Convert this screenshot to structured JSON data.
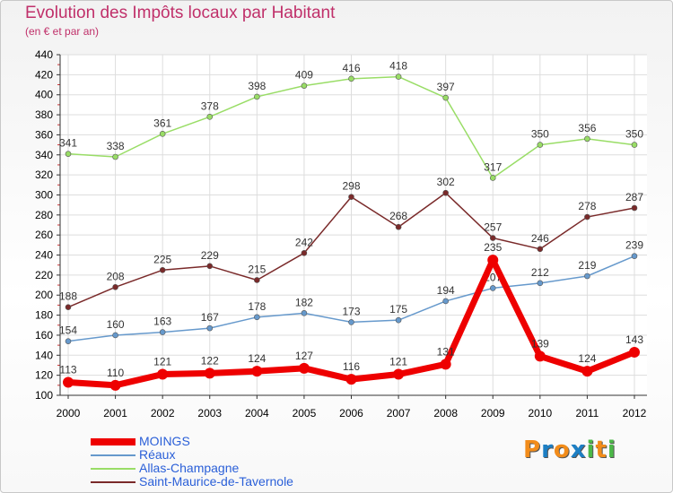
{
  "header": {
    "title": "Evolution des Impôts locaux par Habitant",
    "subtitle": "(en € et par an)"
  },
  "brand": {
    "text": "Proxiti",
    "letters": [
      "P",
      "r",
      "o",
      "x",
      "i",
      "t",
      "i"
    ],
    "colors": [
      "#f28c1a",
      "#1d7fc4",
      "#f28c1a",
      "#1d7fc4",
      "#4cb848",
      "#f28c1a",
      "#4cb848"
    ]
  },
  "chart_data": {
    "type": "line",
    "x": [
      2000,
      2001,
      2002,
      2003,
      2004,
      2005,
      2006,
      2007,
      2008,
      2009,
      2010,
      2011,
      2012
    ],
    "ylim": [
      100,
      440
    ],
    "yticks": [
      100,
      120,
      140,
      160,
      180,
      200,
      220,
      240,
      260,
      280,
      300,
      320,
      340,
      360,
      380,
      400,
      420,
      440
    ],
    "grid": true,
    "legend_position": "bottom-left",
    "series": [
      {
        "name": "Allas-Champagne",
        "color": "#99dd66",
        "labels": [
          "341",
          "338",
          "361",
          "378",
          "398",
          "409",
          "416",
          "418",
          "397",
          "317",
          "350",
          "356",
          "350"
        ],
        "values": [
          341,
          338,
          361,
          378,
          398,
          409,
          416,
          418,
          397,
          317,
          350,
          356,
          350
        ]
      },
      {
        "name": "Saint-Maurice-de-Tavernole",
        "color": "#7a2a2a",
        "labels": [
          "188",
          "208",
          "225",
          "229",
          "215",
          "242",
          "298",
          "268",
          "302",
          "257",
          "246",
          "278",
          "287"
        ],
        "values": [
          188,
          208,
          225,
          229,
          215,
          242,
          298,
          268,
          302,
          257,
          246,
          278,
          287
        ]
      },
      {
        "name": "Réaux",
        "color": "#6699cc",
        "labels": [
          "154",
          "160",
          "163",
          "167",
          "178",
          "182",
          "173",
          "175",
          "194",
          "207",
          "212",
          "219",
          "239"
        ],
        "values": [
          154,
          160,
          163,
          167,
          178,
          182,
          173,
          175,
          194,
          207,
          212,
          219,
          239
        ]
      },
      {
        "name": "MOINGS",
        "color": "#ee0000",
        "labels": [
          "113",
          "110",
          "121",
          "122",
          "124",
          "127",
          "116",
          "121",
          "131",
          "235",
          "139",
          "124",
          "143"
        ],
        "values": [
          113,
          110,
          121,
          122,
          124,
          127,
          116,
          121,
          131,
          235,
          139,
          124,
          143
        ]
      }
    ],
    "legend": [
      "MOINGS",
      "Réaux",
      "Allas-Champagne",
      "Saint-Maurice-de-Tavernole"
    ]
  }
}
